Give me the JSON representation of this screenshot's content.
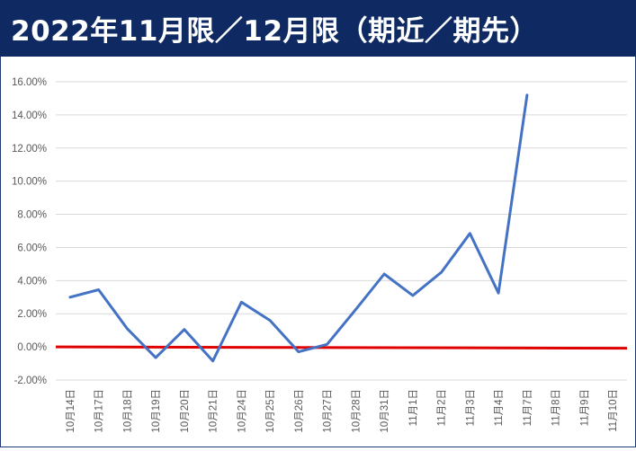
{
  "title": "2022年11月限／12月限（期近／期先）",
  "colors": {
    "title_background": "#0f2a63",
    "title_text": "#ffffff",
    "series_line": "#4472c4",
    "zero_line": "#e00000",
    "gridline": "#d9d9d9",
    "tick_text": "#595959"
  },
  "chart_data": {
    "type": "line",
    "categories": [
      "10月14日",
      "10月17日",
      "10月18日",
      "10月19日",
      "10月20日",
      "10月21日",
      "10月24日",
      "10月25日",
      "10月26日",
      "10月27日",
      "10月28日",
      "10月31日",
      "11月1日",
      "11月2日",
      "11月3日",
      "11月4日",
      "11月7日",
      "11月8日",
      "11月9日",
      "11月10日"
    ],
    "yticks": [
      -0.02,
      0.0,
      0.02,
      0.04,
      0.06,
      0.08,
      0.1,
      0.12,
      0.14,
      0.16
    ],
    "ytick_labels": [
      "-2.00%",
      "0.00%",
      "2.00%",
      "4.00%",
      "6.00%",
      "8.00%",
      "10.00%",
      "12.00%",
      "14.00%",
      "16.00%"
    ],
    "ylim": [
      -0.02,
      0.16
    ],
    "series": [
      {
        "values": [
          0.03,
          0.0345,
          0.011,
          -0.0065,
          0.0105,
          -0.0085,
          0.027,
          0.016,
          -0.003,
          0.0015,
          0.0225,
          0.044,
          0.031,
          0.045,
          0.0685,
          0.0325,
          0.152,
          null,
          null,
          null
        ]
      }
    ],
    "reference_line": {
      "value": 0.0
    },
    "grid": true,
    "legend": "none"
  }
}
